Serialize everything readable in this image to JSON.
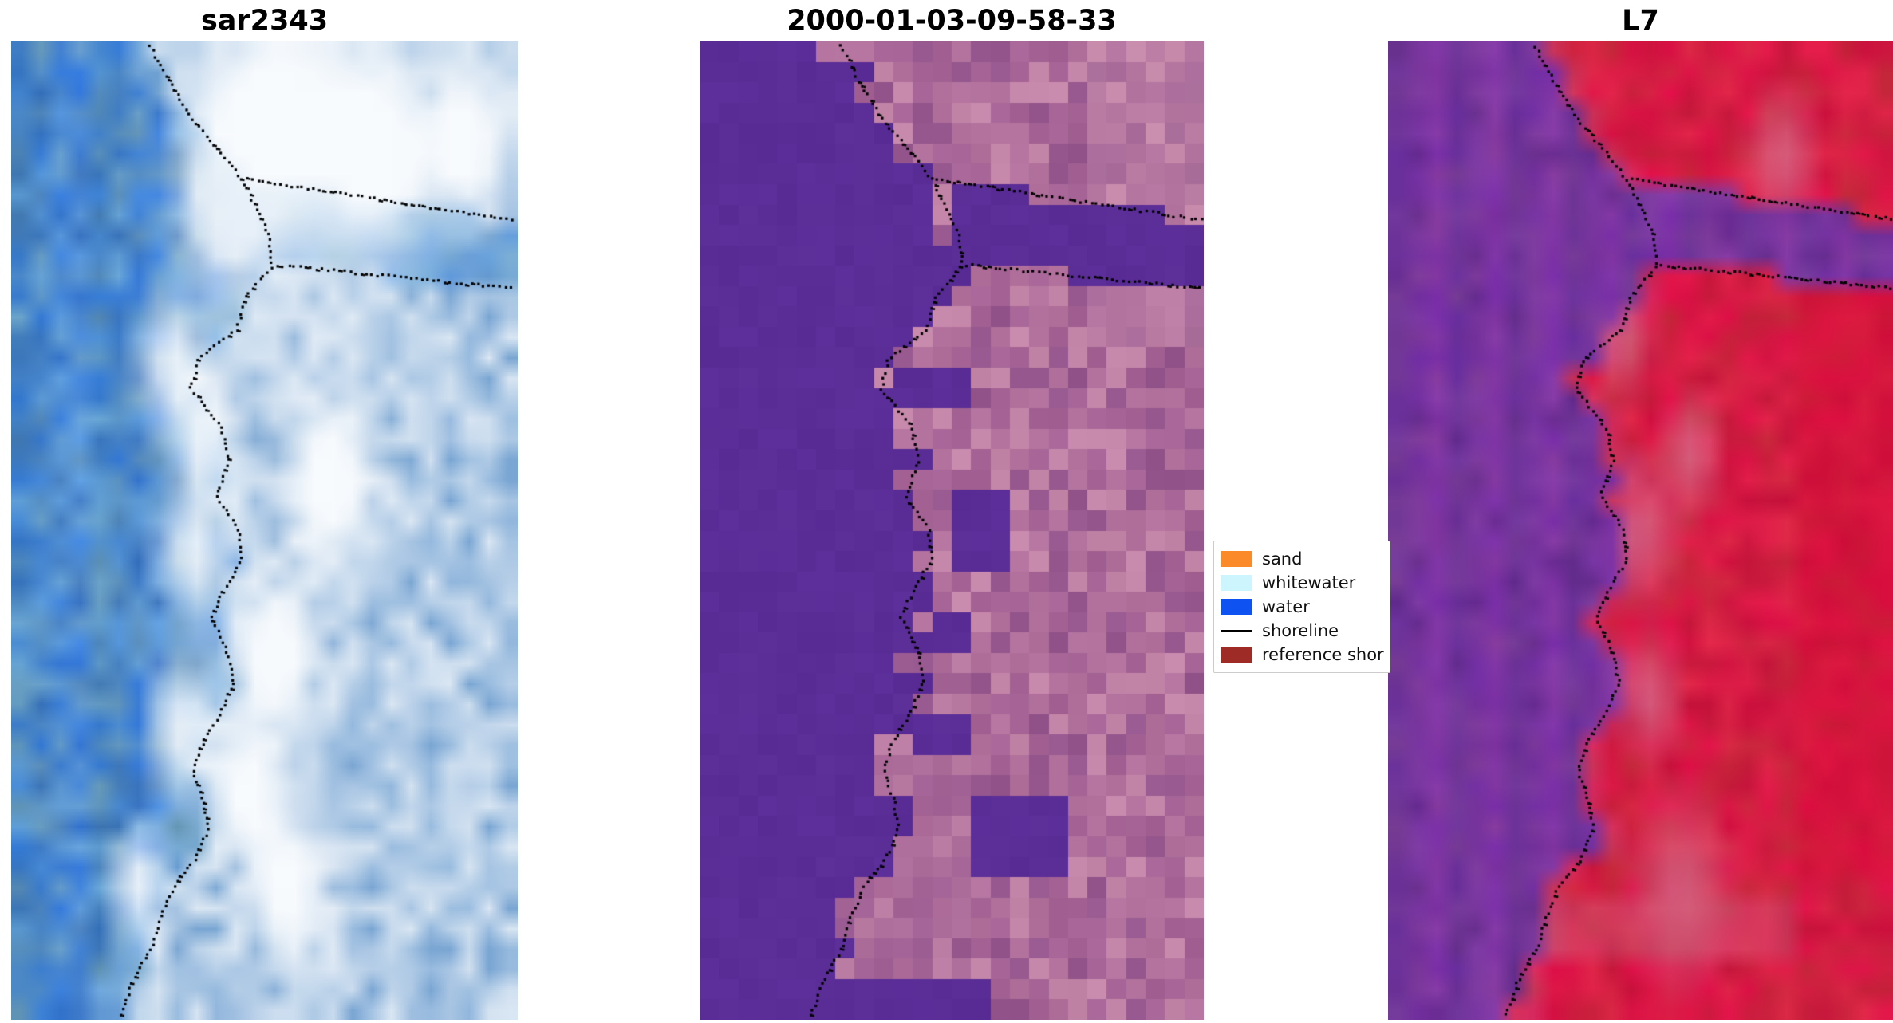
{
  "figure": {
    "background": "#ffffff",
    "panels": [
      {
        "id": "sar",
        "title": "sar2343"
      },
      {
        "id": "classified",
        "title": "2000-01-03-09-58-33"
      },
      {
        "id": "l7",
        "title": "L7"
      }
    ],
    "legend": {
      "entries": [
        {
          "label": "sand",
          "kind": "patch",
          "color": "#fb8b2a"
        },
        {
          "label": "whitewater",
          "kind": "patch",
          "color": "#cdf5fd"
        },
        {
          "label": "water",
          "kind": "patch",
          "color": "#0e53f2"
        },
        {
          "label": "shoreline",
          "kind": "line",
          "color": "#000000"
        },
        {
          "label": "reference shor",
          "kind": "patch",
          "color": "#9e2b25"
        }
      ]
    },
    "palette": {
      "sar_water": "#3f76bd",
      "sar_land": "#dce8f4",
      "class_water": "#5a2d96",
      "class_land": "#b2739d",
      "l7_water": "#7a3aa0",
      "l7_land": "#cc1a46",
      "shoreline_dots": "#000000"
    }
  },
  "chart_data": {
    "type": "heatmap",
    "title": "",
    "panels": [
      {
        "title": "sar2343"
      },
      {
        "title": "2000-01-03-09-58-33"
      },
      {
        "title": "L7"
      }
    ],
    "legend_entries": [
      "sand",
      "whitewater",
      "water",
      "shoreline",
      "reference shor"
    ],
    "legend_position": "center, between second and third panel",
    "notes": "Three coastal raster tiles of the same area; left=blue SAR composite, middle=purple/mauve classified image, right=purple/red false-color composite; each overlaid with a black dotted detected shoreline meandering from top to bottom with an east-trending channel near the top."
  }
}
